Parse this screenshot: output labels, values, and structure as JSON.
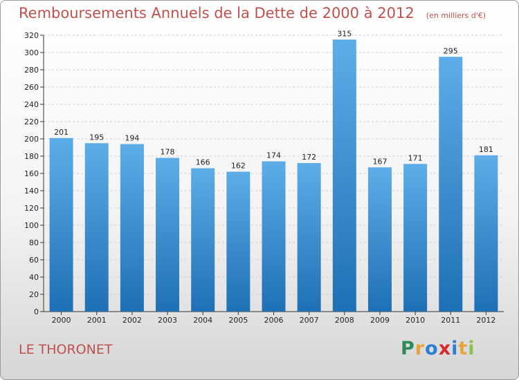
{
  "header": {
    "title": "Remboursements Annuels de la Dette de 2000 à 2012",
    "unit": "(en milliers d'€)"
  },
  "commune": "LE THORONET",
  "logo": {
    "letters": [
      "P",
      "r",
      "o",
      "x",
      "i",
      "t",
      "i"
    ],
    "colors": [
      "#2e8b57",
      "#e8a33d",
      "#2a7fd4",
      "#d9282f",
      "#2a7fd4",
      "#e8a33d",
      "#8bc34a"
    ]
  },
  "colors": {
    "bar_top": "#5dade8",
    "bar_bottom": "#1f6fb5",
    "title": "#c0504d",
    "grid": "#d0d0d0"
  },
  "chart_data": {
    "type": "bar",
    "categories": [
      "2000",
      "2001",
      "2002",
      "2003",
      "2004",
      "2005",
      "2006",
      "2007",
      "2008",
      "2009",
      "2010",
      "2011",
      "2012"
    ],
    "values": [
      201,
      195,
      194,
      178,
      166,
      162,
      174,
      172,
      315,
      167,
      171,
      295,
      181
    ],
    "ylim": [
      0,
      320
    ],
    "ytick_step": 20,
    "grid": true,
    "data_labels": true
  }
}
